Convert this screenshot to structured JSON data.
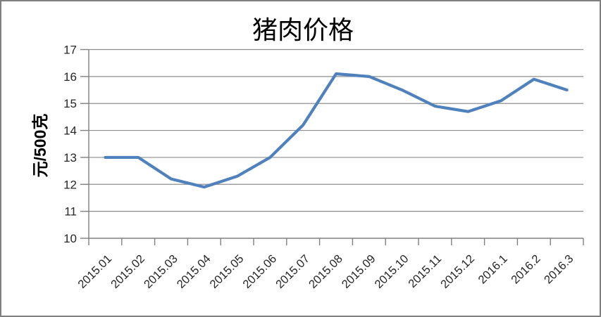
{
  "chart_data": {
    "type": "line",
    "title": "猪肉价格",
    "ylabel": "元/500克",
    "xlabel": "",
    "categories": [
      "2015.01",
      "2015.02",
      "2015.03",
      "2015.04",
      "2015.05",
      "2015.06",
      "2015.07",
      "2015.08",
      "2015.09",
      "2015.10",
      "2015.11",
      "2015.12",
      "2016.1",
      "2016.2",
      "2016.3"
    ],
    "values": [
      13.0,
      13.0,
      12.2,
      11.9,
      12.3,
      13.0,
      14.2,
      16.1,
      16.0,
      15.5,
      14.9,
      14.7,
      15.1,
      15.9,
      15.5
    ],
    "ylim": [
      10,
      17
    ],
    "ytick_step": 1,
    "grid": true,
    "legend": false,
    "colors": {
      "line": "#4F81BD",
      "gridline": "#8e8e8e",
      "axis": "#808080",
      "tick_text": "#262626",
      "frame_border": "#7f7f7f"
    }
  }
}
